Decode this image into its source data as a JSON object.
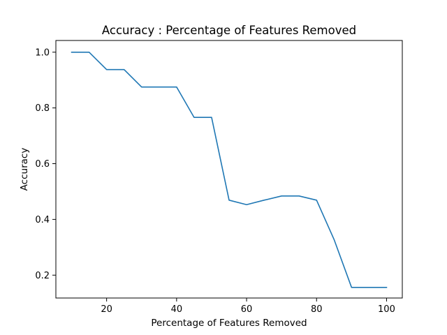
{
  "chart_data": {
    "type": "line",
    "title": "Accuracy : Percentage of Features Removed",
    "xlabel": "Percentage of Features Removed",
    "ylabel": "Accuracy",
    "xlim": [
      5.5,
      104.5
    ],
    "ylim": [
      0.118,
      1.042
    ],
    "x_ticks": [
      20,
      40,
      60,
      80,
      100
    ],
    "x_tick_labels": [
      "20",
      "40",
      "60",
      "80",
      "100"
    ],
    "y_ticks": [
      0.2,
      0.4,
      0.6,
      0.8,
      1.0
    ],
    "y_tick_labels": [
      "0.2",
      "0.4",
      "0.6",
      "0.8",
      "1.0"
    ],
    "grid": false,
    "series": [
      {
        "color": "#1f77b4",
        "x": [
          10,
          15,
          20,
          25,
          30,
          35,
          40,
          45,
          50,
          55,
          60,
          65,
          70,
          75,
          80,
          85,
          90,
          95,
          100
        ],
        "y": [
          1.0,
          1.0,
          0.9375,
          0.9375,
          0.875,
          0.875,
          0.875,
          0.766,
          0.766,
          0.469,
          0.453,
          0.469,
          0.484,
          0.484,
          0.469,
          0.328,
          0.156,
          0.156,
          0.156
        ]
      }
    ]
  }
}
